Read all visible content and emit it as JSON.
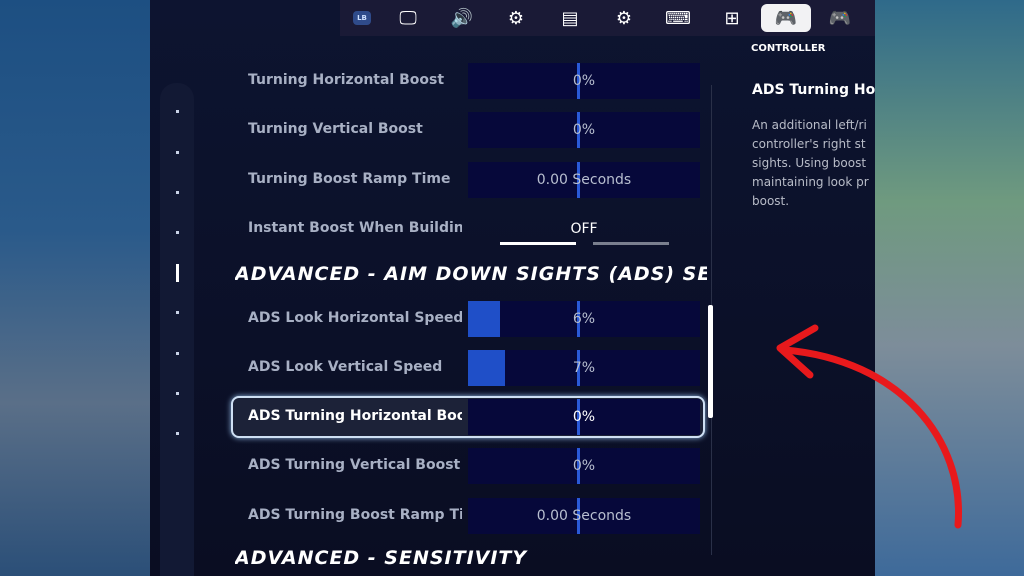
{
  "topbar": {
    "bumper": "LB",
    "tabs": [
      {
        "icon": "monitor-icon",
        "glyph": "🖵"
      },
      {
        "icon": "speaker-icon",
        "glyph": "🔊"
      },
      {
        "icon": "gear-icon",
        "glyph": "⚙"
      },
      {
        "icon": "display-layout-icon",
        "glyph": "▤"
      },
      {
        "icon": "touch-gear-icon",
        "glyph": "⚙"
      },
      {
        "icon": "keyboard-mouse-icon",
        "glyph": "⌨"
      },
      {
        "icon": "hierarchy-icon",
        "glyph": "⊞"
      },
      {
        "icon": "controller-gear-icon",
        "glyph": "🎮",
        "active": true
      },
      {
        "icon": "gamepad-icon",
        "glyph": "🎮"
      }
    ],
    "active_label": "CONTROLLER"
  },
  "rows": [
    {
      "label": "Turning Horizontal Boost",
      "value": "0%",
      "fill": 0
    },
    {
      "label": "Turning Vertical Boost",
      "value": "0%",
      "fill": 0
    },
    {
      "label": "Turning Boost Ramp Time",
      "value": "0.00 Seconds",
      "fill": 0
    },
    {
      "label": "Instant Boost When Building",
      "value": "OFF",
      "type": "toggle"
    }
  ],
  "section_ads": "ADVANCED - AIM DOWN SIGHTS (ADS) SENSITIVITY",
  "ads_rows": [
    {
      "label": "ADS Look Horizontal Speed",
      "value": "6%",
      "fill": 6
    },
    {
      "label": "ADS Look Vertical Speed",
      "value": "7%",
      "fill": 7
    },
    {
      "label": "ADS Turning Horizontal Boost",
      "value": "0%",
      "fill": 0,
      "focused": true
    },
    {
      "label": "ADS Turning Vertical Boost",
      "value": "0%",
      "fill": 0
    },
    {
      "label": "ADS Turning Boost Ramp Time",
      "value": "0.00 Seconds",
      "fill": 0
    }
  ],
  "section_sens": "ADVANCED - SENSITIVITY",
  "description": {
    "title": "ADS Turning Horizontal Boost",
    "lines": [
      "An additional left/ri",
      "controller's right st",
      "sights.  Using boost",
      "maintaining look pr",
      "boost."
    ]
  },
  "annotation": {
    "arrow_color": "#e8191c"
  }
}
